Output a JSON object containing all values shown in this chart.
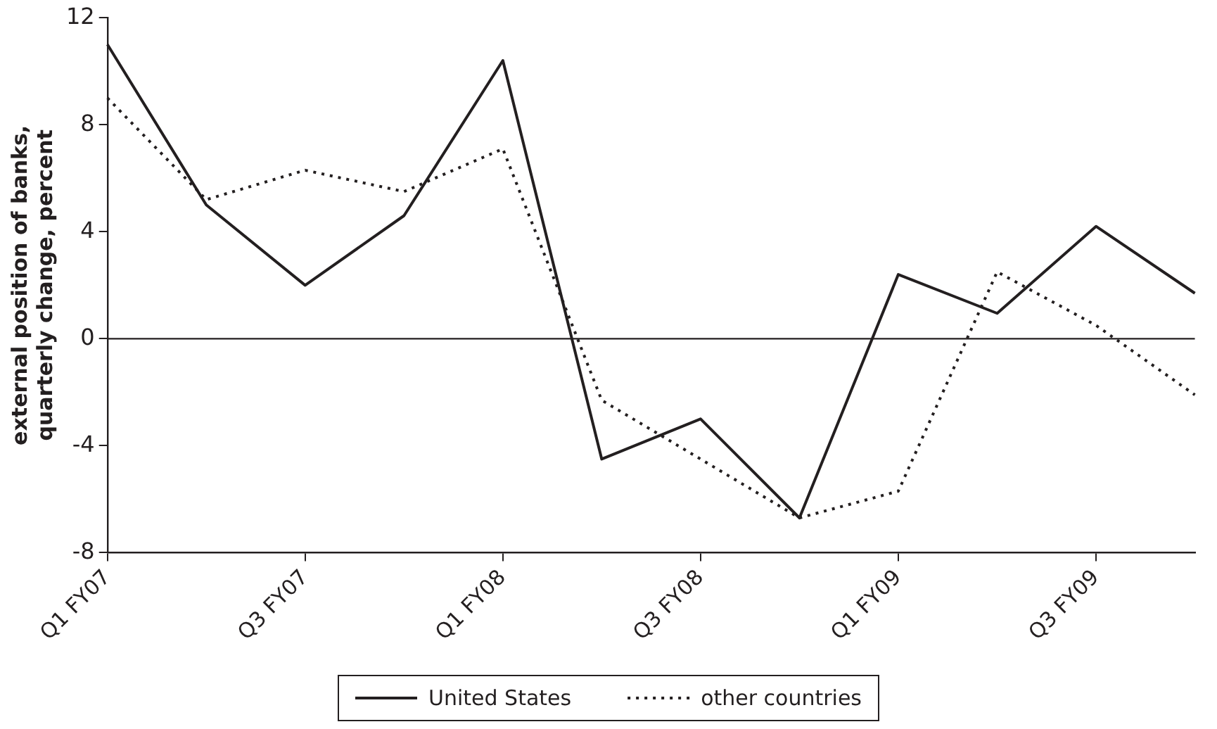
{
  "chart_data": {
    "type": "line",
    "ylabel": "external position of banks, quarterly change, percent",
    "categories": [
      "Q1 FY07",
      null,
      "Q3 FY07",
      null,
      "Q1 FY08",
      null,
      "Q3 FY08",
      null,
      "Q1 FY09",
      null,
      "Q3 FY09",
      null
    ],
    "series": [
      {
        "name": "United States",
        "color": "#231f20",
        "line_style": "solid",
        "values": [
          11.0,
          5.0,
          2.0,
          4.6,
          10.4,
          -4.5,
          -3.0,
          -6.7,
          2.4,
          0.95,
          4.2,
          1.7
        ]
      },
      {
        "name": "other countries",
        "color": "#231f20",
        "line_style": "dotted",
        "values": [
          9.0,
          5.2,
          6.3,
          5.5,
          7.1,
          -2.3,
          -4.5,
          -6.7,
          -5.7,
          2.5,
          0.5,
          -2.1
        ]
      }
    ],
    "ylim": [
      -8,
      12
    ],
    "yticks": [
      -8,
      -4,
      0,
      4,
      8,
      12
    ],
    "ref_lines": [
      {
        "axis": "y",
        "value": 0
      }
    ],
    "grid": false,
    "legend": "bottom",
    "marker": "none"
  }
}
